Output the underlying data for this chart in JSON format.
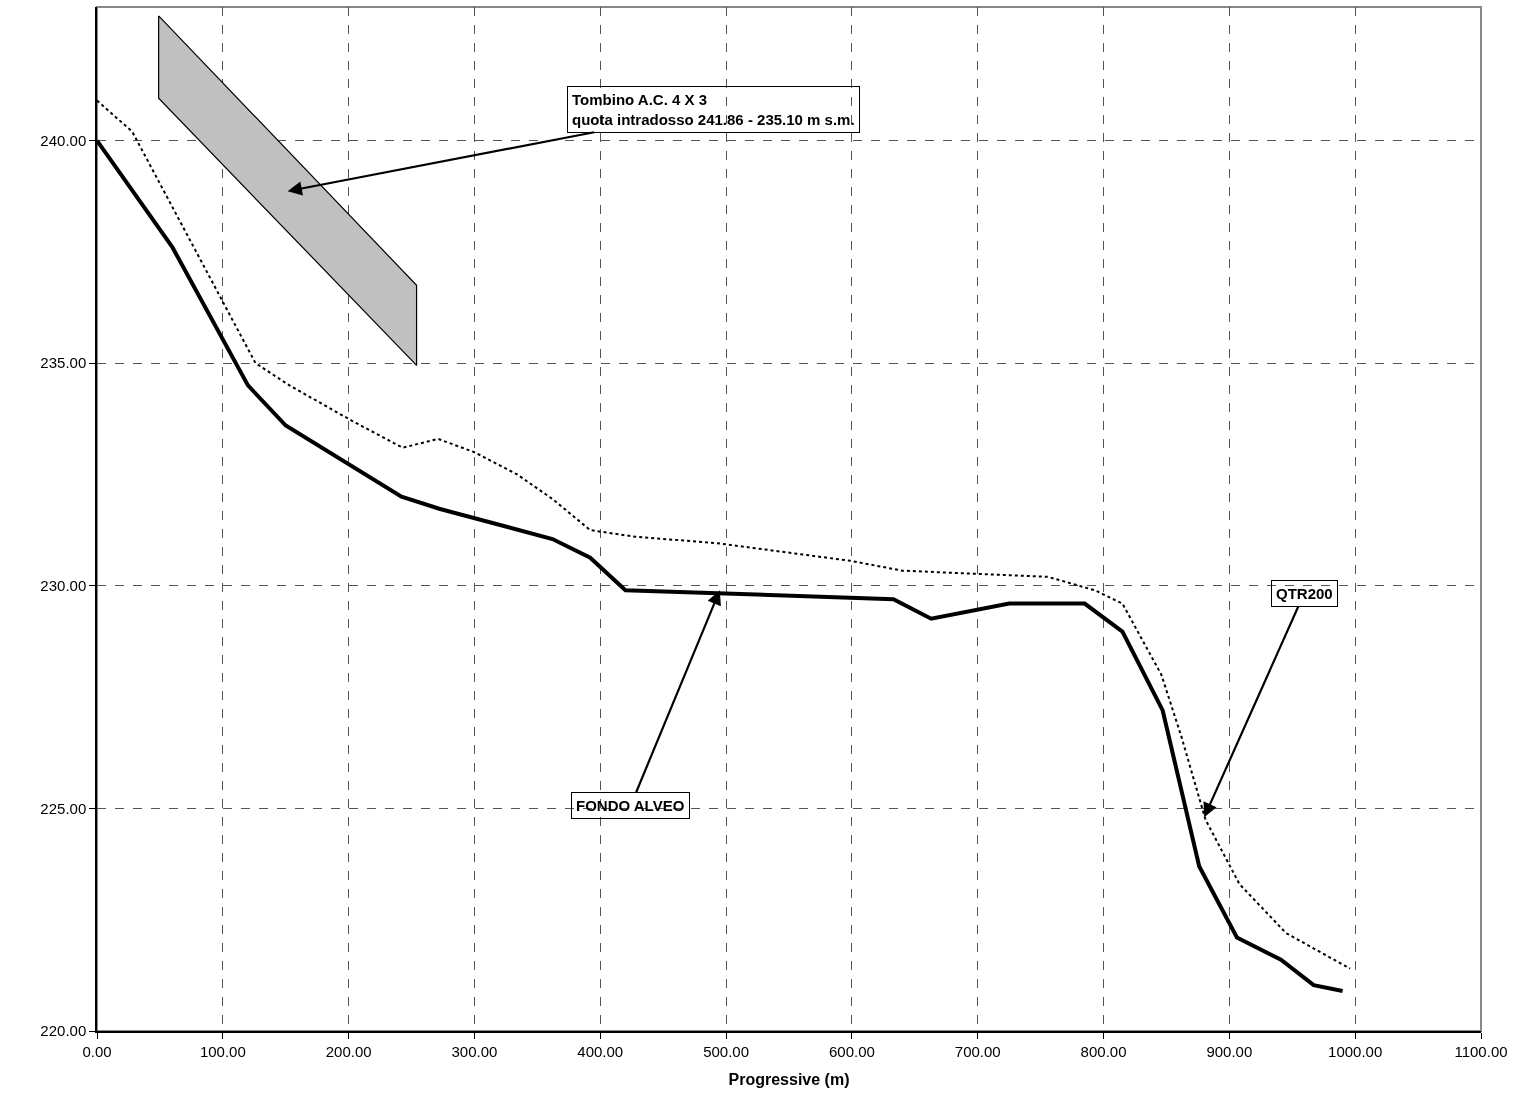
{
  "chart_data": {
    "type": "line",
    "xlabel": "Progressive (m)",
    "series": [
      {
        "type": "area",
        "color": "#c0c0c0",
        "x": [
          49,
          254,
          254,
          49
        ],
        "values": [
          242.8,
          236.75,
          234.95,
          240.95
        ]
      },
      {
        "color": "#000000",
        "line_style": "dotted",
        "x": [
          0,
          28,
          126,
          153,
          203,
          243,
          271,
          300,
          334,
          362,
          392,
          428,
          492,
          599,
          640,
          756,
          793,
          815,
          846,
          862,
          881,
          908,
          945,
          996
        ],
        "values": [
          240.9,
          240.2,
          235.0,
          234.5,
          233.7,
          233.1,
          233.3,
          233.0,
          232.5,
          231.95,
          231.25,
          231.1,
          230.96,
          230.56,
          230.34,
          230.2,
          229.9,
          229.6,
          228.0,
          226.6,
          224.75,
          223.3,
          222.2,
          221.4
        ]
      },
      {
        "color": "#000000",
        "line_style": "solid",
        "x": [
          0,
          60,
          120,
          150,
          242,
          272,
          362,
          392,
          420,
          633,
          663,
          725,
          785,
          815,
          847,
          876,
          906,
          941,
          967,
          990
        ],
        "values": [
          240.0,
          237.6,
          234.5,
          233.6,
          232.0,
          231.73,
          231.05,
          230.63,
          229.9,
          229.7,
          229.26,
          229.6,
          229.6,
          228.97,
          227.2,
          223.7,
          222.1,
          221.6,
          221.03,
          220.9
        ]
      }
    ],
    "annotations": [
      "Tombino A.C. 4 X 3\nquota intradosso 241.86 - 235.10 m s.m.",
      {
        "text": "FONDO ALVEO",
        "x": 495,
        "y": 229.9
      },
      {
        "text": "QTR200",
        "x": 880,
        "y": 224.8
      }
    ],
    "xlim": [
      0,
      1100
    ],
    "ylim": [
      220,
      243
    ],
    "xticks": [
      {
        "value": 0,
        "label": "0.00"
      },
      {
        "value": 100,
        "label": "100.00"
      },
      {
        "value": 200,
        "label": "200.00"
      },
      {
        "value": 300,
        "label": "300.00"
      },
      {
        "value": 400,
        "label": "400.00"
      },
      {
        "value": 500,
        "label": "500.00"
      },
      {
        "value": 600,
        "label": "600.00"
      },
      {
        "value": 700,
        "label": "700.00"
      },
      {
        "value": 800,
        "label": "800.00"
      },
      {
        "value": 900,
        "label": "900.00"
      },
      {
        "value": 1000,
        "label": "1000.00"
      },
      {
        "value": 1100,
        "label": "1100.00"
      }
    ],
    "yticks": [
      {
        "value": 220,
        "label": "220.00"
      },
      {
        "value": 225,
        "label": "225.00"
      },
      {
        "value": 230,
        "label": "230.00"
      },
      {
        "value": 235,
        "label": "235.00"
      },
      {
        "value": 240,
        "label": "240.00"
      }
    ],
    "grid": true
  }
}
